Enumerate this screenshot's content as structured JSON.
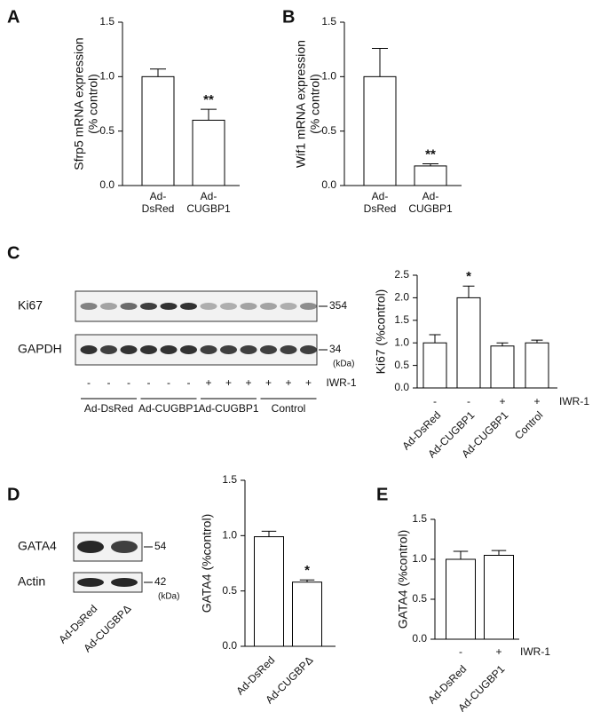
{
  "chart_data": [
    {
      "type": "bar",
      "panel": "A",
      "y_label": "Sfrp5 mRNA expression\n(% control)",
      "categories": [
        "Ad-\nDsRed",
        "Ad-\nCUGBP1"
      ],
      "values": [
        1.0,
        0.6
      ],
      "errors": [
        0.07,
        0.1
      ],
      "significance": [
        null,
        "**"
      ],
      "color": "#ffffff",
      "ylim": [
        0,
        1.5
      ],
      "yticks": [
        {
          "value": 0,
          "label": "0.0"
        },
        0.5,
        {
          "value": 1,
          "label": "1.0"
        },
        1.5
      ]
    },
    {
      "type": "bar",
      "panel": "B",
      "y_label": "Wif1 mRNA expression\n(% control)",
      "categories": [
        "Ad-\nDsRed",
        "Ad-\nCUGBP1"
      ],
      "values": [
        1.0,
        0.18
      ],
      "errors": [
        0.26,
        0.02
      ],
      "significance": [
        null,
        "**"
      ],
      "color": "#ffffff",
      "ylim": [
        0,
        1.5
      ],
      "yticks": [
        {
          "value": 0,
          "label": "0.0"
        },
        0.5,
        {
          "value": 1,
          "label": "1.0"
        },
        1.5
      ]
    },
    {
      "type": "bar",
      "y_label": "Ki67 (%control)",
      "categories": [
        "Ad-DsRed",
        "Ad-CUGBP1",
        "Ad-CUGBP1",
        "Control"
      ],
      "values": [
        1.0,
        2.0,
        0.93,
        1.0
      ],
      "errors": [
        0.18,
        0.26,
        0.07,
        0.06
      ],
      "significance": [
        null,
        "*",
        null,
        null
      ],
      "treatment": [
        "-",
        "-",
        "+",
        "+"
      ],
      "treatment_label": "IWR-1",
      "color": "#ffffff",
      "ylim": [
        0,
        2.5
      ],
      "yticks": [
        {
          "value": 0,
          "label": "0.0"
        },
        0.5,
        {
          "value": 1,
          "label": "1.0"
        },
        1.5,
        {
          "value": 2,
          "label": "2.0"
        },
        2.5
      ]
    },
    {
      "type": "bar",
      "y_label": "GATA4 (%control)",
      "categories": [
        "Ad-DsRed",
        "Ad-CUGBPΔ"
      ],
      "values": [
        0.99,
        0.58
      ],
      "errors": [
        0.05,
        0.02
      ],
      "significance": [
        null,
        "*"
      ],
      "color": "#ffffff",
      "ylim": [
        0,
        1.5
      ],
      "yticks": [
        {
          "value": 0,
          "label": "0.0"
        },
        0.5,
        {
          "value": 1,
          "label": "1.0"
        },
        1.5
      ]
    },
    {
      "type": "bar",
      "panel": "E",
      "y_label": "GATA4 (%control)",
      "categories": [
        "Ad-DsRed",
        "Ad-CUGBP1"
      ],
      "values": [
        1.0,
        1.05
      ],
      "errors": [
        0.1,
        0.06
      ],
      "treatment": [
        "-",
        "+"
      ],
      "treatment_label": "IWR-1",
      "color": "#ffffff",
      "ylim": [
        0,
        1.5
      ],
      "yticks": [
        {
          "value": 0,
          "label": "0.0"
        },
        0.5,
        {
          "value": 1,
          "label": "1.0"
        },
        1.5
      ]
    }
  ],
  "blots": [
    {
      "panel": "C",
      "rows": [
        {
          "label": "Ki67",
          "size": 354
        },
        {
          "label": "GAPDH",
          "size": 34
        }
      ],
      "size_unit": "(kDa)",
      "treatment": [
        "-",
        "-",
        "-",
        "-",
        "-",
        "-",
        "+",
        "+",
        "+",
        "+",
        "+",
        "+"
      ],
      "treatment_label": "IWR-1",
      "groups": [
        "Ad-DsRed",
        "Ad-CUGBP1",
        "Ad-CUGBP1",
        "Control"
      ]
    },
    {
      "panel": "D",
      "rows": [
        {
          "label": "GATA4",
          "size": 54
        },
        {
          "label": "Actin",
          "size": 42
        }
      ],
      "size_unit": "(kDa)",
      "lanes": [
        "Ad-DsRed",
        "Ad-CUGBPΔ"
      ]
    }
  ]
}
